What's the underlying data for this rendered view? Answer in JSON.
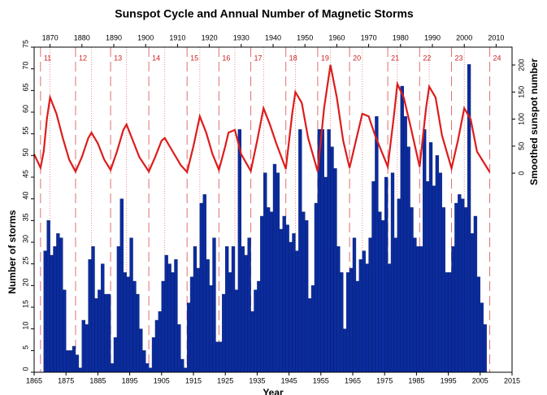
{
  "chart_data": {
    "type": "bar",
    "title": "Sunspot Cycle and Annual Number of Magnetic Storms",
    "xlabel": "Year",
    "ylabel": "Number of storms",
    "y2label": "Smoothed sunspot number",
    "xlim": [
      1865,
      2015
    ],
    "xticks": [
      1865,
      1875,
      1885,
      1895,
      1905,
      1915,
      1925,
      1935,
      1945,
      1955,
      1965,
      1975,
      1985,
      1995,
      2005,
      2015
    ],
    "x2ticks": [
      1870,
      1880,
      1890,
      1900,
      1910,
      1920,
      1930,
      1940,
      1950,
      1960,
      1970,
      1980,
      1990,
      2000,
      2010
    ],
    "ylim": [
      0,
      75
    ],
    "yticks": [
      0,
      5,
      10,
      15,
      20,
      25,
      30,
      35,
      40,
      45,
      50,
      55,
      60,
      65,
      70,
      75
    ],
    "y2lim": [
      -368,
      233
    ],
    "y2ticks": [
      0,
      50,
      100,
      150,
      200
    ],
    "storms": {
      "color": "#0b2c9e",
      "x": [
        1868,
        1869,
        1870,
        1871,
        1872,
        1873,
        1874,
        1875,
        1876,
        1877,
        1878,
        1879,
        1880,
        1881,
        1882,
        1883,
        1884,
        1885,
        1886,
        1887,
        1888,
        1889,
        1890,
        1891,
        1892,
        1893,
        1894,
        1895,
        1896,
        1897,
        1898,
        1899,
        1900,
        1901,
        1902,
        1903,
        1904,
        1905,
        1906,
        1907,
        1908,
        1909,
        1910,
        1911,
        1912,
        1913,
        1914,
        1915,
        1916,
        1917,
        1918,
        1919,
        1920,
        1921,
        1922,
        1923,
        1924,
        1925,
        1926,
        1927,
        1928,
        1929,
        1930,
        1931,
        1932,
        1933,
        1934,
        1935,
        1936,
        1937,
        1938,
        1939,
        1940,
        1941,
        1942,
        1943,
        1944,
        1945,
        1946,
        1947,
        1948,
        1949,
        1950,
        1951,
        1952,
        1953,
        1954,
        1955,
        1956,
        1957,
        1958,
        1959,
        1960,
        1961,
        1962,
        1963,
        1964,
        1965,
        1966,
        1967,
        1968,
        1969,
        1970,
        1971,
        1972,
        1973,
        1974,
        1975,
        1976,
        1977,
        1978,
        1979,
        1980,
        1981,
        1982,
        1983,
        1984,
        1985,
        1986,
        1987,
        1988,
        1989,
        1990,
        1991,
        1992,
        1993,
        1994,
        1995,
        1996,
        1997,
        1998,
        1999,
        2000,
        2001,
        2002,
        2003,
        2004,
        2005,
        2006
      ],
      "values": [
        28,
        35,
        27,
        29,
        32,
        31,
        19,
        5,
        5,
        6,
        4,
        1,
        12,
        11,
        26,
        29,
        17,
        19,
        25,
        18,
        18,
        2,
        8,
        29,
        40,
        23,
        22,
        31,
        21,
        18,
        10,
        5,
        2,
        1,
        8,
        12,
        14,
        21,
        27,
        25,
        23,
        26,
        11,
        3,
        1,
        16,
        22,
        29,
        24,
        39,
        41,
        26,
        20,
        31,
        7,
        7,
        18,
        29,
        23,
        29,
        19,
        56,
        29,
        27,
        31,
        14,
        19,
        21,
        36,
        46,
        38,
        37,
        48,
        46,
        33,
        36,
        34,
        30,
        32,
        28,
        56,
        37,
        35,
        17,
        20,
        39,
        56,
        56,
        45,
        56,
        52,
        47,
        29,
        23,
        10,
        23,
        24,
        31,
        21,
        26,
        28,
        25,
        31,
        44,
        59,
        37,
        35,
        45,
        25,
        46,
        31,
        40,
        66,
        59,
        52,
        38,
        31,
        29,
        29,
        56,
        44,
        53,
        43,
        50,
        46,
        38,
        23,
        23,
        29,
        39,
        41,
        40,
        38,
        71,
        32,
        36,
        22,
        16,
        11
      ]
    },
    "sunspots": {
      "color": "#dd1c1c",
      "axis": "y2",
      "x": [
        1865,
        1867,
        1868,
        1869,
        1870,
        1872,
        1874,
        1876,
        1878,
        1880,
        1882,
        1883,
        1885,
        1887,
        1889,
        1891,
        1893,
        1894,
        1896,
        1898,
        1901,
        1903,
        1905,
        1906,
        1908,
        1911,
        1913,
        1915,
        1917,
        1919,
        1921,
        1923,
        1925,
        1926,
        1928,
        1930,
        1933,
        1935,
        1937,
        1939,
        1941,
        1944,
        1946,
        1947,
        1949,
        1951,
        1954,
        1956,
        1958,
        1960,
        1962,
        1964,
        1966,
        1968,
        1970,
        1972,
        1976,
        1978,
        1979,
        1981,
        1983,
        1986,
        1988,
        1989,
        1991,
        1993,
        1996,
        1998,
        2000,
        2002,
        2004,
        2008
      ],
      "values": [
        35,
        10,
        40,
        100,
        140,
        110,
        65,
        25,
        3,
        30,
        65,
        75,
        55,
        25,
        6,
        40,
        80,
        90,
        60,
        30,
        3,
        30,
        60,
        65,
        45,
        15,
        2,
        50,
        105,
        75,
        35,
        6,
        50,
        75,
        80,
        35,
        4,
        60,
        120,
        90,
        55,
        8,
        110,
        150,
        130,
        65,
        3,
        120,
        200,
        140,
        60,
        10,
        60,
        110,
        105,
        70,
        12,
        110,
        165,
        140,
        90,
        12,
        120,
        160,
        140,
        70,
        9,
        60,
        120,
        100,
        40,
        2
      ]
    },
    "cycles": [
      {
        "number": 11,
        "start": 1867,
        "peak": 1870
      },
      {
        "number": 12,
        "start": 1878,
        "peak": 1883
      },
      {
        "number": 13,
        "start": 1889,
        "peak": 1894
      },
      {
        "number": 14,
        "start": 1901,
        "peak": 1906
      },
      {
        "number": 15,
        "start": 1913,
        "peak": 1917
      },
      {
        "number": 16,
        "start": 1923,
        "peak": 1928
      },
      {
        "number": 17,
        "start": 1933,
        "peak": 1937
      },
      {
        "number": 18,
        "start": 1944,
        "peak": 1947
      },
      {
        "number": 19,
        "start": 1954,
        "peak": 1958
      },
      {
        "number": 20,
        "start": 1964,
        "peak": 1968
      },
      {
        "number": 21,
        "start": 1976,
        "peak": 1979
      },
      {
        "number": 22,
        "start": 1986,
        "peak": 1989
      },
      {
        "number": 23,
        "start": 1996,
        "peak": 2000
      },
      {
        "number": 24,
        "start": 2008,
        "peak": null
      }
    ]
  }
}
